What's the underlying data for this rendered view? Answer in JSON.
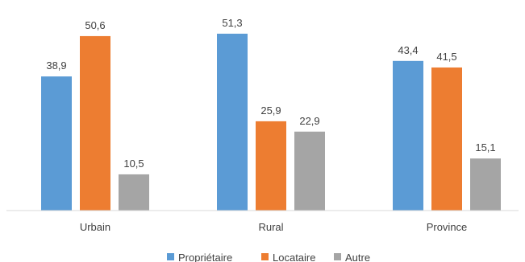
{
  "chart_data": {
    "type": "bar",
    "categories": [
      "Urbain",
      "Rural",
      "Province"
    ],
    "series": [
      {
        "name": "Propriétaire",
        "color": "#5B9BD5",
        "values": [
          38.9,
          51.3,
          43.4
        ],
        "labels": [
          "38,9",
          "51,3",
          "43,4"
        ]
      },
      {
        "name": "Locataire",
        "color": "#ED7D31",
        "values": [
          50.6,
          25.9,
          41.5
        ],
        "labels": [
          "50,6",
          "25,9",
          "41,5"
        ]
      },
      {
        "name": "Autre",
        "color": "#A5A5A5",
        "values": [
          10.5,
          22.9,
          15.1
        ],
        "labels": [
          "10,5",
          "22,9",
          "15,1"
        ]
      }
    ],
    "title": "",
    "xlabel": "",
    "ylabel": "",
    "ylim": [
      0,
      55
    ],
    "grid": false,
    "legend_position": "bottom"
  }
}
